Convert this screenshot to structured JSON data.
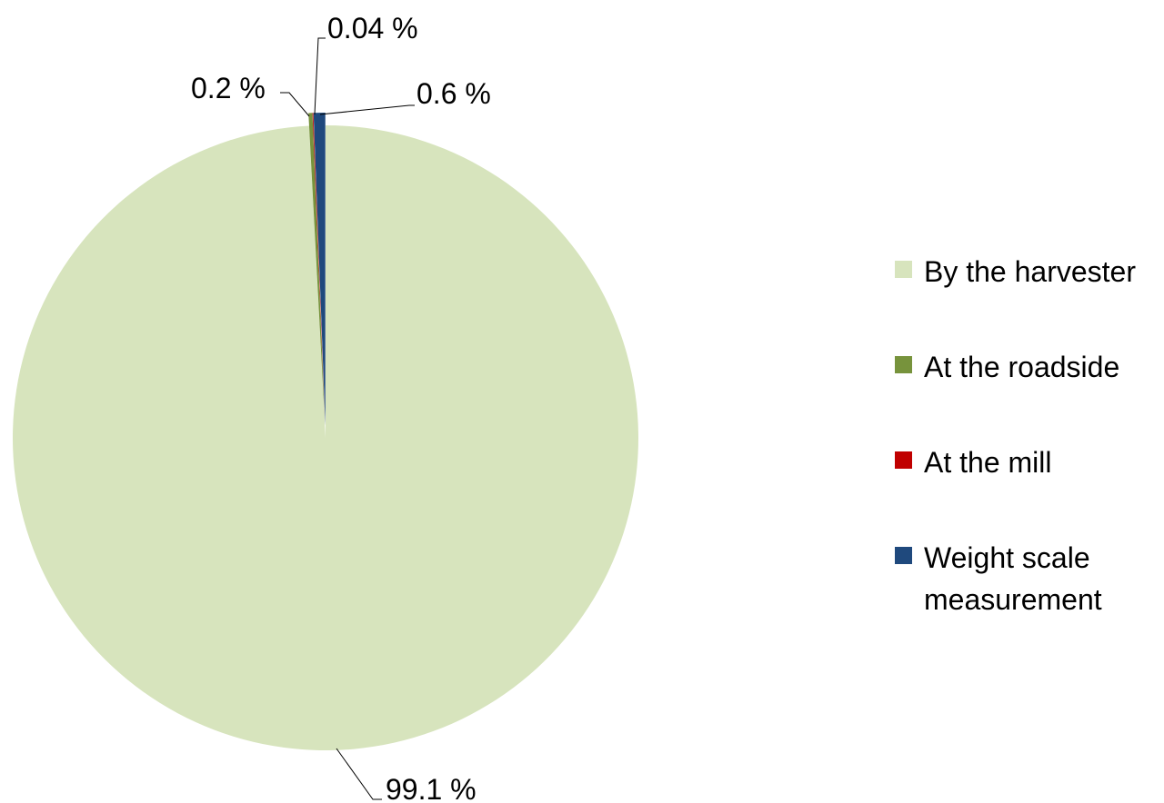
{
  "chart_data": {
    "type": "pie",
    "title": "",
    "slices": [
      {
        "label": "By the harvester",
        "value": 99.1,
        "data_label": "99.1 %",
        "color": "#d7e4bd"
      },
      {
        "label": "At the roadside",
        "value": 0.2,
        "data_label": "0.2 %",
        "color": "#77933c"
      },
      {
        "label": "At the mill",
        "value": 0.04,
        "data_label": "0.04 %",
        "color": "#c00000"
      },
      {
        "label": "Weight scale measurement",
        "value": 0.6,
        "data_label": "0.6 %",
        "color": "#1f497d"
      }
    ],
    "legend_position": "right"
  }
}
